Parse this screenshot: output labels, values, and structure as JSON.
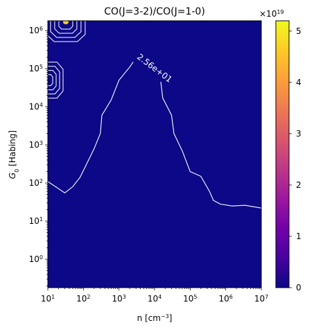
{
  "chart_data": {
    "type": "heatmap",
    "title": "CO(J=3-2)/CO(J=1-0)",
    "xlabel_base": "n [cm",
    "xlabel_exp": "−3",
    "xlabel_close": "]",
    "ylabel_g": "G",
    "ylabel_sub": "0",
    "ylabel_rest": " [Habing]",
    "x_scale": "log",
    "y_scale": "log",
    "xlim": [
      10,
      10000000
    ],
    "ylim": [
      0.18,
      1800000
    ],
    "x_ticks": [
      {
        "value": 10,
        "base": "10",
        "exp": "1"
      },
      {
        "value": 100,
        "base": "10",
        "exp": "2"
      },
      {
        "value": 1000,
        "base": "10",
        "exp": "3"
      },
      {
        "value": 10000,
        "base": "10",
        "exp": "4"
      },
      {
        "value": 100000,
        "base": "10",
        "exp": "5"
      },
      {
        "value": 1000000,
        "base": "10",
        "exp": "6"
      },
      {
        "value": 10000000,
        "base": "10",
        "exp": "7"
      }
    ],
    "y_ticks": [
      {
        "value": 1,
        "base": "10",
        "exp": "0"
      },
      {
        "value": 10,
        "base": "10",
        "exp": "1"
      },
      {
        "value": 100,
        "base": "10",
        "exp": "2"
      },
      {
        "value": 1000,
        "base": "10",
        "exp": "3"
      },
      {
        "value": 10000,
        "base": "10",
        "exp": "4"
      },
      {
        "value": 100000,
        "base": "10",
        "exp": "5"
      },
      {
        "value": 1000000,
        "base": "10",
        "exp": "6"
      }
    ],
    "background_color": "#0d0887",
    "contour_color": "#ffffff",
    "contour_label": "2.56e+01",
    "contour_label_position": {
      "n": 9000,
      "g0": 90000
    },
    "contour_label_rotation_deg": 37,
    "contour_left": [
      {
        "n": 10,
        "g0": 110
      },
      {
        "n": 30,
        "g0": 55
      },
      {
        "n": 50,
        "g0": 80
      },
      {
        "n": 80,
        "g0": 140
      },
      {
        "n": 120,
        "g0": 300
      },
      {
        "n": 200,
        "g0": 800
      },
      {
        "n": 300,
        "g0": 2000
      },
      {
        "n": 330,
        "g0": 6000
      },
      {
        "n": 600,
        "g0": 15000
      },
      {
        "n": 1000,
        "g0": 50000
      },
      {
        "n": 2000,
        "g0": 110000
      },
      {
        "n": 2500,
        "g0": 150000
      }
    ],
    "contour_right": [
      {
        "n": 15000,
        "g0": 45000
      },
      {
        "n": 17000,
        "g0": 17000
      },
      {
        "n": 30000,
        "g0": 6000
      },
      {
        "n": 35000,
        "g0": 2000
      },
      {
        "n": 60000,
        "g0": 700
      },
      {
        "n": 100000,
        "g0": 200
      },
      {
        "n": 200000,
        "g0": 150
      },
      {
        "n": 350000,
        "g0": 60
      },
      {
        "n": 450000,
        "g0": 35
      },
      {
        "n": 700000,
        "g0": 28
      },
      {
        "n": 1500000,
        "g0": 25
      },
      {
        "n": 3500000,
        "g0": 26
      },
      {
        "n": 10000000,
        "g0": 22
      }
    ],
    "hotspot": {
      "n": 32,
      "g0": 1750000,
      "color": "#fcce25"
    },
    "colorbar": {
      "min": 0,
      "max": 5.2,
      "ticks": [
        0,
        1,
        2,
        3,
        4,
        5
      ],
      "tick_labels": [
        "0",
        "1",
        "2",
        "3",
        "4",
        "5"
      ],
      "offset_base": "×10",
      "offset_exp": "19",
      "stops": [
        "#0d0887",
        "#46039f",
        "#7201a8",
        "#9c179e",
        "#bd3786",
        "#d8576b",
        "#ed7953",
        "#fb9f3a",
        "#fdca26",
        "#f0f921"
      ]
    }
  }
}
